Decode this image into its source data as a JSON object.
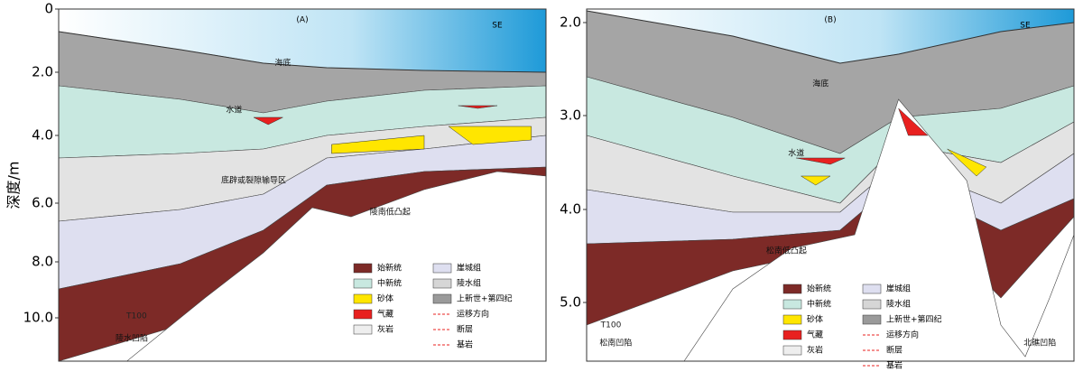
{
  "y_axis_label": "深度/m",
  "panels": [
    {
      "label": "(A)",
      "direction": "SE",
      "yticks": [
        "0",
        "2.0",
        "4.0",
        "6.0",
        "8.0",
        "10.0"
      ],
      "annotations": [
        "海底",
        "水道",
        "底辟或裂隙输导区",
        "陵南低凸起",
        "陵水凹陷",
        "T100"
      ],
      "legend": [
        "始新统",
        "中新统",
        "砂体",
        "气藏",
        "灰岩",
        "崖城组",
        "陵水组",
        "上新世+第四纪",
        "运移方向",
        "断层",
        "基岩"
      ]
    },
    {
      "label": "(B)",
      "direction": "SE",
      "yticks": [
        "2.0",
        "3.0",
        "4.0",
        "5.0"
      ],
      "annotations": [
        "海底",
        "水道",
        "松南低凸起",
        "松南凹陷",
        "北礁凹陷",
        "T100"
      ],
      "legend": [
        "始新统",
        "中新统",
        "砂体",
        "气藏",
        "灰岩",
        "崖城组",
        "陵水组",
        "上新世+第四纪",
        "运移方向",
        "断层",
        "基岩"
      ]
    }
  ]
}
